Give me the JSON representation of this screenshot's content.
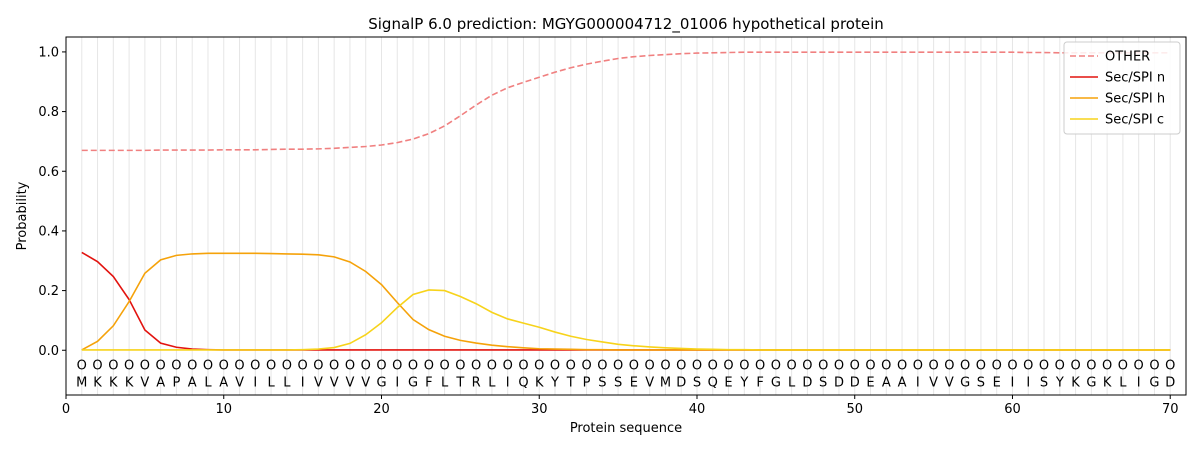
{
  "chart_data": {
    "type": "line",
    "title": "SignalP 6.0 prediction: MGYG000004712_01006 hypothetical protein",
    "xlabel": "Protein sequence",
    "ylabel": "Probability",
    "xlim": [
      0,
      71
    ],
    "ylim": [
      -0.15,
      1.05
    ],
    "xticks": [
      0,
      10,
      20,
      30,
      40,
      50,
      60,
      70
    ],
    "yticks": [
      0.0,
      0.2,
      0.4,
      0.6,
      0.8,
      1.0
    ],
    "legend_position": "top-right",
    "sequence": [
      "M",
      "K",
      "K",
      "K",
      "V",
      "A",
      "P",
      "A",
      "L",
      "A",
      "V",
      "I",
      "L",
      "L",
      "I",
      "V",
      "V",
      "V",
      "V",
      "G",
      "I",
      "G",
      "F",
      "L",
      "T",
      "R",
      "L",
      "I",
      "Q",
      "K",
      "Y",
      "T",
      "P",
      "S",
      "S",
      "E",
      "V",
      "M",
      "D",
      "S",
      "Q",
      "E",
      "Y",
      "F",
      "G",
      "L",
      "D",
      "S",
      "D",
      "D",
      "E",
      "A",
      "A",
      "I",
      "V",
      "V",
      "G",
      "S",
      "E",
      "I",
      "I",
      "S",
      "Y",
      "K",
      "G",
      "K",
      "L",
      "I",
      "G",
      "D"
    ],
    "region_marker": "O",
    "series": [
      {
        "name": "OTHER",
        "color": "#f08080",
        "dashed": true,
        "values": [
          0.67,
          0.67,
          0.67,
          0.67,
          0.67,
          0.671,
          0.671,
          0.671,
          0.671,
          0.672,
          0.672,
          0.672,
          0.673,
          0.674,
          0.674,
          0.675,
          0.677,
          0.68,
          0.683,
          0.688,
          0.696,
          0.708,
          0.726,
          0.752,
          0.786,
          0.822,
          0.855,
          0.88,
          0.898,
          0.915,
          0.932,
          0.947,
          0.959,
          0.969,
          0.978,
          0.984,
          0.988,
          0.991,
          0.994,
          0.996,
          0.997,
          0.998,
          0.999,
          0.999,
          0.999,
          0.999,
          0.999,
          0.999,
          0.999,
          0.999,
          0.999,
          0.999,
          0.999,
          0.999,
          0.999,
          0.999,
          0.999,
          0.999,
          0.999,
          0.999,
          0.998,
          0.998,
          0.997,
          0.997,
          0.997,
          0.997,
          0.997,
          0.997,
          0.997,
          0.997
        ]
      },
      {
        "name": "Sec/SPI n",
        "color": "#e2130f",
        "dashed": false,
        "values": [
          0.328,
          0.297,
          0.247,
          0.17,
          0.068,
          0.024,
          0.01,
          0.004,
          0.002,
          0.001,
          0.001,
          0.001,
          0.001,
          0.001,
          0.001,
          0.001,
          0.001,
          0.001,
          0.001,
          0.001,
          0.001,
          0.001,
          0.001,
          0.001,
          0.001,
          0.001,
          0.001,
          0.001,
          0.001,
          0.001,
          0.001,
          0.001,
          0.001,
          0.001,
          0.001,
          0.001,
          0.001,
          0.001,
          0.001,
          0.001,
          0.001,
          0.001,
          0.001,
          0.001,
          0.001,
          0.001,
          0.001,
          0.001,
          0.001,
          0.001,
          0.001,
          0.001,
          0.001,
          0.001,
          0.001,
          0.001,
          0.001,
          0.001,
          0.001,
          0.001,
          0.001,
          0.001,
          0.001,
          0.001,
          0.001,
          0.001,
          0.001,
          0.001,
          0.001,
          0.001
        ]
      },
      {
        "name": "Sec/SPI h",
        "color": "#f5a20a",
        "dashed": false,
        "values": [
          0.001,
          0.03,
          0.082,
          0.163,
          0.258,
          0.303,
          0.318,
          0.323,
          0.325,
          0.325,
          0.325,
          0.325,
          0.324,
          0.323,
          0.322,
          0.32,
          0.313,
          0.296,
          0.264,
          0.22,
          0.16,
          0.103,
          0.069,
          0.047,
          0.033,
          0.024,
          0.017,
          0.012,
          0.008,
          0.005,
          0.004,
          0.003,
          0.002,
          0.002,
          0.001,
          0.001,
          0.001,
          0.001,
          0.001,
          0.001,
          0.001,
          0.001,
          0.001,
          0.001,
          0.001,
          0.001,
          0.001,
          0.001,
          0.001,
          0.001,
          0.001,
          0.001,
          0.001,
          0.001,
          0.001,
          0.001,
          0.001,
          0.001,
          0.001,
          0.001,
          0.001,
          0.001,
          0.001,
          0.001,
          0.001,
          0.001,
          0.001,
          0.001,
          0.001,
          0.001
        ]
      },
      {
        "name": "Sec/SPI c",
        "color": "#f7d31b",
        "dashed": false,
        "values": [
          0.001,
          0.001,
          0.001,
          0.001,
          0.001,
          0.001,
          0.001,
          0.001,
          0.001,
          0.001,
          0.001,
          0.001,
          0.001,
          0.001,
          0.002,
          0.004,
          0.009,
          0.023,
          0.052,
          0.092,
          0.143,
          0.187,
          0.202,
          0.2,
          0.18,
          0.156,
          0.127,
          0.105,
          0.091,
          0.077,
          0.061,
          0.047,
          0.036,
          0.028,
          0.02,
          0.015,
          0.011,
          0.008,
          0.006,
          0.004,
          0.003,
          0.002,
          0.002,
          0.001,
          0.001,
          0.001,
          0.001,
          0.001,
          0.001,
          0.001,
          0.001,
          0.001,
          0.001,
          0.001,
          0.001,
          0.001,
          0.001,
          0.001,
          0.001,
          0.001,
          0.001,
          0.001,
          0.001,
          0.001,
          0.001,
          0.001,
          0.001,
          0.001,
          0.001,
          0.001
        ]
      }
    ]
  }
}
